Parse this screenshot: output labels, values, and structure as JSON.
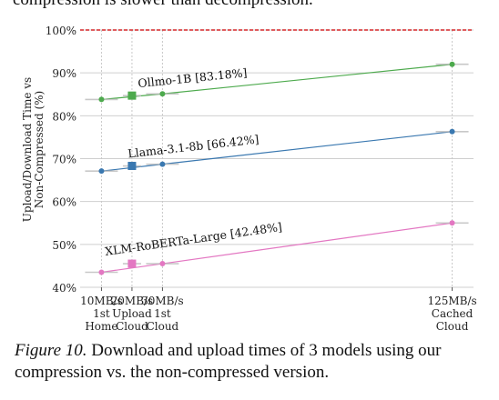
{
  "header_fragment": "compression is slower than decompression.",
  "caption": {
    "label": "Figure 10.",
    "text": " Download and upload times of 3 models using our compression vs. the non-compressed version."
  },
  "chart_data": {
    "type": "line",
    "ylabel": "Upload/Download Time vs\nNon-Compressed (%)",
    "ylim": [
      40,
      100
    ],
    "yticks": [
      40,
      50,
      60,
      70,
      80,
      90,
      100
    ],
    "ytick_labels": [
      "40%",
      "50%",
      "60%",
      "70%",
      "80%",
      "90%",
      "100%"
    ],
    "grid": true,
    "reference_line": {
      "y": 100
    },
    "x": [
      10,
      20,
      30,
      125
    ],
    "xtick_labels": [
      [
        "10MB/s",
        "1st",
        "Home"
      ],
      [
        "20MB/s",
        "Upload",
        "Cloud"
      ],
      [
        "30MB/s",
        "1st",
        "Cloud"
      ],
      [
        "125MB/s",
        "Cached",
        "Cloud"
      ]
    ],
    "series": [
      {
        "name": "Ollmo-1B [83.18%]",
        "color": "#4daa4d",
        "points": [
          [
            10,
            83.8
          ],
          [
            30,
            85.1
          ],
          [
            125,
            92.0
          ]
        ],
        "upload": [
          20,
          84.7
        ]
      },
      {
        "name": "Llama-3.1-8b [66.42%]",
        "color": "#3a78b0",
        "points": [
          [
            10,
            67.1
          ],
          [
            30,
            68.7
          ],
          [
            125,
            76.3
          ]
        ],
        "upload": [
          20,
          68.3
        ]
      },
      {
        "name": "XLM-RoBERTa-Large [42.48%]",
        "color": "#e377c2",
        "points": [
          [
            10,
            43.5
          ],
          [
            30,
            45.5
          ],
          [
            125,
            55.0
          ]
        ],
        "upload": [
          20,
          45.5
        ]
      }
    ]
  }
}
